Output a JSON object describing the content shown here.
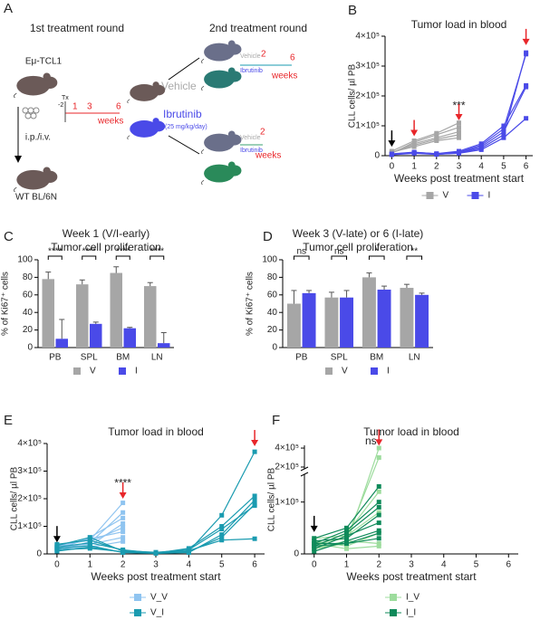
{
  "schematic": {
    "panel": "A",
    "round1": "1st treatment round",
    "round2": "2nd treatment round",
    "donor": "Eμ-TCL1",
    "route": "i.p./i.v.",
    "recipient": "WT BL/6N",
    "tx": "Tx",
    "t_minus2": "-2",
    "t1": "1",
    "t3": "3",
    "t6": "6",
    "weeks": "weeks",
    "vehicle": "Vehicle",
    "ibrutinib": "Ibrutinib",
    "dose": "(25 mg/kg/day)",
    "inset_top": {
      "vehicle": "Vehicle",
      "ibrutinib": "Ibrutinib",
      "t2": "2",
      "t6": "6",
      "weeks": "weeks"
    },
    "inset_bottom": {
      "vehicle": "Vehicle",
      "ibrutinib": "Ibrutinib",
      "t2": "2",
      "weeks": "weeks"
    }
  },
  "chart_data": [
    {
      "panel": "B",
      "type": "line",
      "title": "Tumor load in blood",
      "xlabel": "Weeks post treatment start",
      "ylabel": "CLL cells/ µl PB",
      "x": [
        0,
        1,
        2,
        3,
        4,
        5,
        6
      ],
      "xlim": [
        -0.3,
        6.3
      ],
      "xticks": [
        0,
        1,
        2,
        3,
        4,
        5,
        6
      ],
      "ylim": [
        0,
        400000
      ],
      "yticks": [
        0,
        {
          "value": 100000,
          "label": "1×10⁵"
        },
        {
          "value": 200000,
          "label": "2×10⁵"
        },
        {
          "value": 300000,
          "label": "3×10⁵"
        },
        {
          "value": 400000,
          "label": "4×10⁵"
        }
      ],
      "series": [
        {
          "name": "V",
          "color": "#a6a6a6",
          "values": [
            [
              12000,
              30000,
              50000,
              60000,
              null,
              null,
              null
            ],
            [
              10000,
              40000,
              60000,
              80000,
              null,
              null,
              null
            ],
            [
              8000,
              45000,
              70000,
              95000,
              null,
              null,
              null
            ],
            [
              15000,
              50000,
              75000,
              110000,
              null,
              null,
              null
            ],
            [
              10000,
              35000,
              55000,
              70000,
              null,
              null,
              null
            ]
          ]
        },
        {
          "name": "I",
          "color": "#4a4ae8",
          "values": [
            [
              5000,
              10000,
              5000,
              8000,
              20000,
              60000,
              125000
            ],
            [
              3000,
              8000,
              4000,
              10000,
              30000,
              80000,
              230000
            ],
            [
              6000,
              12000,
              6000,
              12000,
              35000,
              90000,
              340000
            ],
            [
              4000,
              9000,
              5000,
              9000,
              25000,
              70000,
              345000
            ],
            [
              5000,
              11000,
              7000,
              15000,
              40000,
              100000,
              235000
            ]
          ]
        }
      ],
      "annotations": [
        {
          "text": "***",
          "x": 3,
          "y": 165000
        }
      ],
      "arrows": [
        {
          "x": 0,
          "y": 30000,
          "color": "#000000"
        },
        {
          "x": 1,
          "y": 65000,
          "color": "#e8262a"
        },
        {
          "x": 3,
          "y": 118000,
          "color": "#e8262a"
        },
        {
          "x": 6,
          "y": 370000,
          "color": "#e8262a"
        }
      ],
      "legend": "bottom"
    },
    {
      "panel": "C",
      "type": "bar",
      "title": "Week 1 (V/I-early)",
      "subtitle": "Tumor cell proliferation",
      "ylabel": "% of Ki67⁺ cells",
      "categories": [
        "PB",
        "SPL",
        "BM",
        "LN"
      ],
      "ylim": [
        0,
        100
      ],
      "yticks": [
        0,
        20,
        40,
        60,
        80,
        100
      ],
      "series": [
        {
          "name": "V",
          "color": "#a6a6a6",
          "values": [
            78,
            72,
            85,
            70
          ],
          "errors": [
            8,
            5,
            7,
            4
          ]
        },
        {
          "name": "I",
          "color": "#4a4ae8",
          "values": [
            10,
            27,
            22,
            5
          ],
          "errors": [
            22,
            2,
            1,
            12
          ]
        }
      ],
      "significance": [
        "****",
        "****",
        "****",
        "****"
      ],
      "legend": "bottom"
    },
    {
      "panel": "D",
      "type": "bar",
      "title": "Week 3 (V-late) or 6 (I-late)",
      "subtitle": "Tumor cell proliferation",
      "ylabel": "% of Ki67⁺ cells",
      "categories": [
        "PB",
        "SPL",
        "BM",
        "LN"
      ],
      "ylim": [
        0,
        100
      ],
      "yticks": [
        0,
        20,
        40,
        60,
        80,
        100
      ],
      "series": [
        {
          "name": "V",
          "color": "#a6a6a6",
          "values": [
            50,
            57,
            80,
            68
          ],
          "errors": [
            15,
            6,
            5,
            4
          ]
        },
        {
          "name": "I",
          "color": "#4a4ae8",
          "values": [
            62,
            57,
            66,
            60
          ],
          "errors": [
            3,
            8,
            4,
            2
          ]
        }
      ],
      "significance": [
        "ns",
        "ns",
        "*",
        "**"
      ],
      "legend": "bottom"
    },
    {
      "panel": "E",
      "type": "line",
      "title": "Tumor load in blood",
      "xlabel": "Weeks post treatment start",
      "ylabel": "CLL cells/ µl PB",
      "x": [
        0,
        1,
        2,
        3,
        4,
        5,
        6
      ],
      "xlim": [
        -0.3,
        6.3
      ],
      "xticks": [
        0,
        1,
        2,
        3,
        4,
        5,
        6
      ],
      "ylim": [
        0,
        400000
      ],
      "yticks": [
        0,
        {
          "value": 100000,
          "label": "1×10⁵"
        },
        {
          "value": 200000,
          "label": "2×10⁵"
        },
        {
          "value": 300000,
          "label": "3×10⁵"
        },
        {
          "value": 400000,
          "label": "4×10⁵"
        }
      ],
      "series": [
        {
          "name": "V_V",
          "color": "#8fc4f0",
          "values": [
            [
              30000,
              50000,
              185000,
              null,
              null,
              null,
              null
            ],
            [
              20000,
              40000,
              150000,
              null,
              null,
              null,
              null
            ],
            [
              15000,
              60000,
              130000,
              null,
              null,
              null,
              null
            ],
            [
              25000,
              30000,
              110000,
              null,
              null,
              null,
              null
            ],
            [
              10000,
              45000,
              95000,
              null,
              null,
              null,
              null
            ],
            [
              20000,
              55000,
              80000,
              null,
              null,
              null,
              null
            ],
            [
              30000,
              35000,
              60000,
              null,
              null,
              null,
              null
            ],
            [
              15000,
              25000,
              45000,
              null,
              null,
              null,
              null
            ]
          ]
        },
        {
          "name": "V_I",
          "color": "#1a9bb0",
          "values": [
            [
              30000,
              60000,
              10000,
              5000,
              10000,
              140000,
              370000
            ],
            [
              25000,
              40000,
              15000,
              3000,
              20000,
              100000,
              210000
            ],
            [
              20000,
              30000,
              5000,
              2000,
              5000,
              70000,
              195000
            ],
            [
              15000,
              20000,
              8000,
              4000,
              8000,
              60000,
              180000
            ],
            [
              35000,
              50000,
              12000,
              6000,
              15000,
              90000,
              175000
            ],
            [
              10000,
              25000,
              6000,
              3000,
              12000,
              50000,
              55000
            ]
          ]
        }
      ],
      "annotations": [
        {
          "text": "****",
          "x": 2,
          "y": 255000
        }
      ],
      "arrows": [
        {
          "x": 0,
          "y": 42000,
          "color": "#000000"
        },
        {
          "x": 2,
          "y": 200000,
          "color": "#e8262a"
        },
        {
          "x": 6,
          "y": 390000,
          "color": "#e8262a"
        }
      ],
      "legend": "bottom"
    },
    {
      "panel": "F",
      "type": "line",
      "title": "Tumor load in blood",
      "xlabel": "Weeks post treatment start",
      "ylabel": "CLL cells/ µl PB",
      "x": [
        0,
        1,
        2,
        3,
        4,
        5,
        6
      ],
      "xlim": [
        -0.3,
        6.3
      ],
      "xticks": [
        0,
        1,
        2,
        3,
        4,
        5,
        6
      ],
      "ylim": [
        0,
        150000
      ],
      "ylim_upper": [
        200000,
        410000
      ],
      "yticks": [
        0,
        {
          "value": 100000,
          "label": "1×10⁵"
        },
        {
          "value": 200000,
          "label": "2×10⁵"
        },
        {
          "value": 400000,
          "label": "4×10⁵"
        }
      ],
      "series": [
        {
          "name": "I_V",
          "color": "#9ddc9d",
          "values": [
            [
              10000,
              20000,
              400000,
              null,
              null,
              null,
              null
            ],
            [
              20000,
              30000,
              300000,
              null,
              null,
              null,
              null
            ],
            [
              15000,
              40000,
              120000,
              null,
              null,
              null,
              null
            ],
            [
              30000,
              35000,
              80000,
              null,
              null,
              null,
              null
            ],
            [
              25000,
              15000,
              40000,
              null,
              null,
              null,
              null
            ],
            [
              10000,
              25000,
              20000,
              null,
              null,
              null,
              null
            ],
            [
              20000,
              10000,
              15000,
              null,
              null,
              null,
              null
            ]
          ]
        },
        {
          "name": "I_I",
          "color": "#0f8a5a",
          "values": [
            [
              30000,
              50000,
              130000,
              null,
              null,
              null,
              null
            ],
            [
              20000,
              45000,
              100000,
              null,
              null,
              null,
              null
            ],
            [
              15000,
              40000,
              90000,
              null,
              null,
              null,
              null
            ],
            [
              25000,
              30000,
              75000,
              null,
              null,
              null,
              null
            ],
            [
              10000,
              35000,
              60000,
              null,
              null,
              null,
              null
            ],
            [
              5000,
              25000,
              45000,
              null,
              null,
              null,
              null
            ],
            [
              20000,
              20000,
              40000,
              null,
              null,
              null,
              null
            ],
            [
              15000,
              20000,
              30000,
              null,
              null,
              null,
              null
            ]
          ]
        }
      ],
      "annotations": [
        {
          "text": "ns",
          "x": 1.75,
          "y": 470000
        }
      ],
      "arrows": [
        {
          "x": 0,
          "y": 42000,
          "color": "#000000"
        },
        {
          "x": 2,
          "y": 425000,
          "color": "#e8262a"
        }
      ],
      "legend": "bottom"
    }
  ]
}
